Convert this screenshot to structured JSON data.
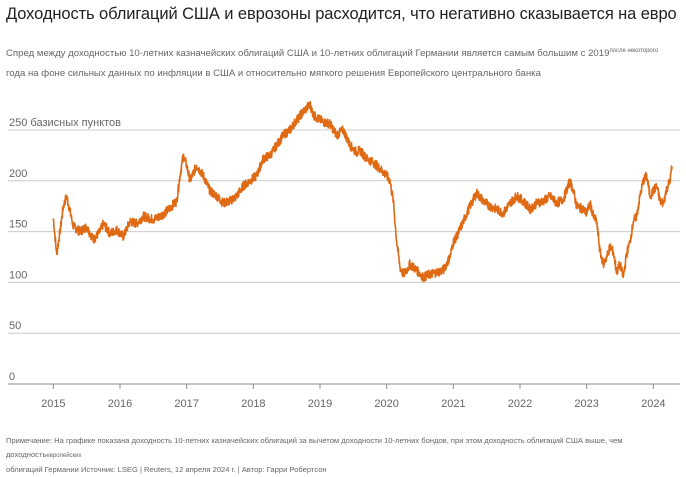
{
  "title": "Доходность облигаций США и еврозоны расходится, что негативно сказывается на евро",
  "subtitle_part1": "Спред между доходностью 10-летних казначейских облигаций США и 10-летних облигаций Германии является самым большим с 2019",
  "subtitle_small": "после некоторого",
  "subtitle_part2": "года на фоне сильных данных по инфляции в США и относительно мягкого решения Европейского центрального банка",
  "note_part1": "Примечание: На графике показана доходность 10-летних казначейских облигаций за вычетом доходности 10-летних бондов, при этом доходность облигаций США выше, чем доходность",
  "note_small": "европейских",
  "note_part2": "облигаций Германии Источник: LSEG | Reuters, 12 апреля 2024 г. | Автор: Гарри Робертсон",
  "colors": {
    "line": "#e06a14",
    "grid": "#cccccc",
    "axis": "#888888",
    "text": "#666666"
  },
  "chart_data": {
    "type": "line",
    "title": "Доходность облигаций США и еврозоны расходится, что негативно сказывается на евро",
    "ylabel": "",
    "ylim": [
      0,
      250
    ],
    "xlim": [
      2014.8,
      2024.4
    ],
    "y_ticks": [
      0,
      50,
      100,
      150,
      200,
      250
    ],
    "y_tick_labels": [
      "0",
      "50",
      "100",
      "150",
      "200",
      "250 базисных пунктов"
    ],
    "x_ticks": [
      2015,
      2016,
      2017,
      2018,
      2019,
      2020,
      2021,
      2022,
      2023,
      2024
    ],
    "x_tick_labels": [
      "2015",
      "2016",
      "2017",
      "2018",
      "2019",
      "2020",
      "2021",
      "2022",
      "2023",
      "2024"
    ],
    "grid": "horizontal",
    "series": [
      {
        "x": [
          2015.0,
          2015.05,
          2015.1,
          2015.15,
          2015.2,
          2015.25,
          2015.3,
          2015.4,
          2015.5,
          2015.6,
          2015.7,
          2015.75,
          2015.85,
          2015.95,
          2016.05,
          2016.15,
          2016.25,
          2016.35,
          2016.5,
          2016.6,
          2016.7,
          2016.85,
          2016.9,
          2016.95,
          2017.0,
          2017.05,
          2017.15,
          2017.25,
          2017.35,
          2017.45,
          2017.55,
          2017.65,
          2017.75,
          2017.85,
          2017.95,
          2018.05,
          2018.15,
          2018.25,
          2018.35,
          2018.45,
          2018.55,
          2018.65,
          2018.75,
          2018.85,
          2018.9,
          2018.95,
          2019.05,
          2019.15,
          2019.25,
          2019.35,
          2019.45,
          2019.55,
          2019.6,
          2019.7,
          2019.8,
          2019.9,
          2020.0,
          2020.05,
          2020.1,
          2020.15,
          2020.2,
          2020.25,
          2020.3,
          2020.35,
          2020.45,
          2020.55,
          2020.65,
          2020.75,
          2020.85,
          2020.95,
          2021.0,
          2021.05,
          2021.15,
          2021.25,
          2021.35,
          2021.45,
          2021.55,
          2021.65,
          2021.75,
          2021.85,
          2021.95,
          2022.05,
          2022.15,
          2022.25,
          2022.35,
          2022.45,
          2022.55,
          2022.65,
          2022.75,
          2022.8,
          2022.85,
          2022.95,
          2023.0,
          2023.05,
          2023.1,
          2023.15,
          2023.2,
          2023.25,
          2023.3,
          2023.35,
          2023.4,
          2023.45,
          2023.5,
          2023.55,
          2023.6,
          2023.65,
          2023.7,
          2023.75,
          2023.8,
          2023.85,
          2023.9,
          2023.95,
          2024.0,
          2024.05,
          2024.1,
          2024.15,
          2024.2,
          2024.25,
          2024.28
        ],
        "y": [
          163,
          128,
          150,
          175,
          185,
          170,
          155,
          150,
          155,
          142,
          150,
          158,
          148,
          152,
          145,
          160,
          158,
          165,
          162,
          165,
          170,
          180,
          205,
          225,
          215,
          200,
          215,
          205,
          190,
          185,
          178,
          180,
          185,
          195,
          200,
          205,
          222,
          225,
          235,
          245,
          250,
          260,
          268,
          275,
          265,
          262,
          258,
          256,
          245,
          250,
          235,
          228,
          230,
          222,
          218,
          212,
          205,
          200,
          180,
          140,
          115,
          108,
          112,
          118,
          112,
          105,
          108,
          110,
          112,
          125,
          140,
          145,
          160,
          175,
          188,
          180,
          175,
          172,
          168,
          178,
          185,
          180,
          172,
          178,
          180,
          185,
          178,
          182,
          200,
          190,
          175,
          172,
          168,
          178,
          165,
          160,
          130,
          118,
          125,
          135,
          130,
          110,
          118,
          105,
          128,
          140,
          160,
          165,
          185,
          200,
          205,
          185,
          190,
          195,
          180,
          178,
          192,
          200,
          214
        ]
      }
    ]
  }
}
